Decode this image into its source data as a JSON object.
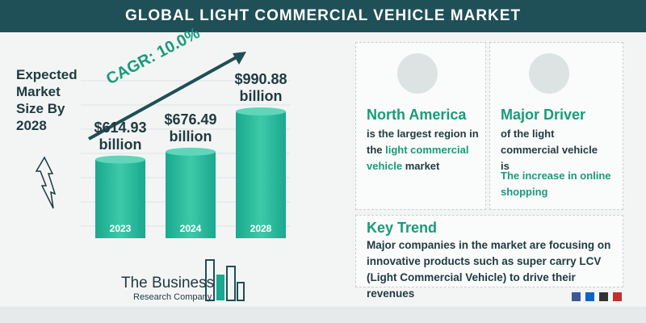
{
  "header": {
    "title": "GLOBAL LIGHT COMMERCIAL VEHICLE MARKET"
  },
  "market": {
    "heading": "Expected Market Size By 2028",
    "cagr": "CAGR: 10.0%"
  },
  "chart_data": {
    "type": "bar",
    "categories": [
      "2023",
      "2024",
      "2028"
    ],
    "values": [
      614.93,
      676.49,
      990.88
    ],
    "value_labels": [
      "$614.93 billion",
      "$676.49 billion",
      "$990.88 billion"
    ],
    "color": "#1aa88f"
  },
  "panels": [
    {
      "title": "North America",
      "text": [
        "is the largest region in the",
        "light commercial vehicle",
        "market"
      ]
    },
    {
      "title": "Major Driver",
      "text": [
        "of the light commercial vehicle is"
      ],
      "highlight": "The increase in online shopping"
    }
  ],
  "key_trend": {
    "title": "Key Trend",
    "text": "Major companies in the market are focusing on innovative products such as super carry LCV (Light Commercial Vehicle) to drive their revenues"
  },
  "logo": {
    "name": "The Business",
    "subtitle": "Research Company"
  }
}
